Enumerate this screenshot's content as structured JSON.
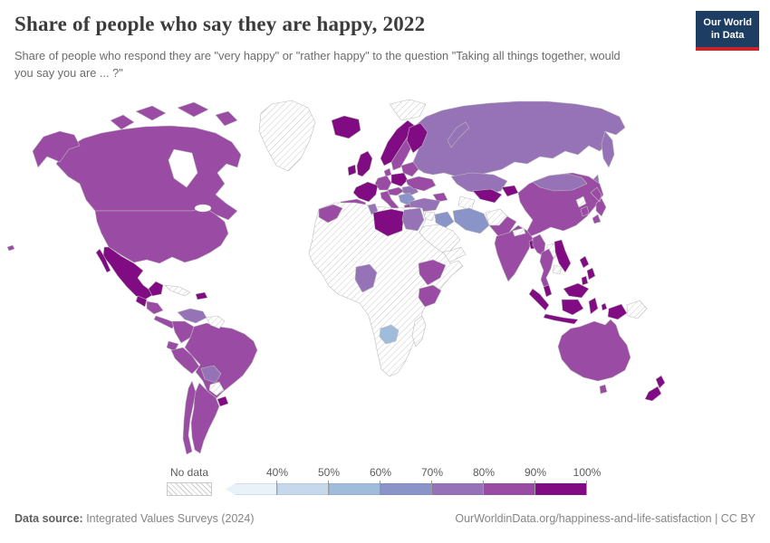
{
  "header": {
    "title": "Share of people who say they are happy, 2022",
    "subtitle": "Share of people who respond they are \"very happy\" or \"rather happy\" to the question \"Taking all things together, would you say you are ... ?\"",
    "logo_line1": "Our World",
    "logo_line2": "in Data",
    "logo_bg": "#1d3d63",
    "logo_accent": "#c5262c"
  },
  "legend": {
    "no_data_label": "No data",
    "ticks": [
      "40%",
      "50%",
      "60%",
      "70%",
      "80%",
      "90%",
      "100%"
    ],
    "bins": [
      {
        "range": "<40%",
        "color": "#e9f2f8"
      },
      {
        "range": "40-50%",
        "color": "#c6d9ec"
      },
      {
        "range": "50-60%",
        "color": "#9fbcdb"
      },
      {
        "range": "60-70%",
        "color": "#8a94c8"
      },
      {
        "range": "70-80%",
        "color": "#9673b7"
      },
      {
        "range": "80-90%",
        "color": "#9a4ba4"
      },
      {
        "range": "90-100%",
        "color": "#800b82"
      }
    ]
  },
  "footer": {
    "source_label": "Data source:",
    "source_value": " Integrated Values Surveys (2024)",
    "credit": "OurWorldinData.org/happiness-and-life-satisfaction | CC BY"
  },
  "chart_data": {
    "type": "choropleth-map",
    "title": "Share of people who say they are happy, 2022",
    "unit": "%",
    "bins": [
      "<40%",
      "40-50%",
      "50-60%",
      "60-70%",
      "70-80%",
      "80-90%",
      "90-100%",
      "no-data"
    ],
    "regions": [
      {
        "id": "greenland",
        "name": "Greenland",
        "bin": "no-data"
      },
      {
        "id": "svalbard",
        "name": "Svalbard",
        "bin": "no-data"
      },
      {
        "id": "canada",
        "name": "Canada",
        "bin": "80-90%"
      },
      {
        "id": "united-states",
        "name": "United States",
        "bin": "80-90%"
      },
      {
        "id": "mexico",
        "name": "Mexico",
        "bin": "90-100%"
      },
      {
        "id": "guatemala",
        "name": "Guatemala",
        "bin": "90-100%"
      },
      {
        "id": "nicaragua",
        "name": "Nicaragua",
        "bin": "80-90%"
      },
      {
        "id": "panama",
        "name": "Panama",
        "bin": "80-90%"
      },
      {
        "id": "cuba",
        "name": "Cuba",
        "bin": "no-data"
      },
      {
        "id": "dominican-republic",
        "name": "Dominican Republic",
        "bin": "90-100%"
      },
      {
        "id": "venezuela",
        "name": "Venezuela",
        "bin": "70-80%"
      },
      {
        "id": "guyana",
        "name": "Guyana/Suriname",
        "bin": "no-data"
      },
      {
        "id": "colombia",
        "name": "Colombia",
        "bin": "80-90%"
      },
      {
        "id": "ecuador",
        "name": "Ecuador",
        "bin": "80-90%"
      },
      {
        "id": "peru",
        "name": "Peru",
        "bin": "80-90%"
      },
      {
        "id": "brazil",
        "name": "Brazil",
        "bin": "80-90%"
      },
      {
        "id": "bolivia",
        "name": "Bolivia",
        "bin": "70-80%"
      },
      {
        "id": "paraguay",
        "name": "Paraguay",
        "bin": "no-data"
      },
      {
        "id": "uruguay",
        "name": "Uruguay",
        "bin": "90-100%"
      },
      {
        "id": "argentina",
        "name": "Argentina",
        "bin": "80-90%"
      },
      {
        "id": "chile",
        "name": "Chile",
        "bin": "80-90%"
      },
      {
        "id": "iceland",
        "name": "Iceland",
        "bin": "90-100%"
      },
      {
        "id": "ireland",
        "name": "Ireland",
        "bin": "90-100%"
      },
      {
        "id": "united-kingdom",
        "name": "United Kingdom",
        "bin": "90-100%"
      },
      {
        "id": "norway",
        "name": "Norway",
        "bin": "90-100%"
      },
      {
        "id": "sweden",
        "name": "Sweden",
        "bin": "80-90%"
      },
      {
        "id": "finland",
        "name": "Finland",
        "bin": "90-100%"
      },
      {
        "id": "denmark",
        "name": "Denmark",
        "bin": "80-90%"
      },
      {
        "id": "germany",
        "name": "Germany",
        "bin": "80-90%"
      },
      {
        "id": "poland",
        "name": "Poland",
        "bin": "90-100%"
      },
      {
        "id": "france",
        "name": "France",
        "bin": "90-100%"
      },
      {
        "id": "spain",
        "name": "Spain",
        "bin": "80-90%"
      },
      {
        "id": "italy",
        "name": "Italy",
        "bin": "80-90%"
      },
      {
        "id": "austria",
        "name": "Austria/Czechia",
        "bin": "80-90%"
      },
      {
        "id": "balkans",
        "name": "Serbia/Bulgaria",
        "bin": "60-70%"
      },
      {
        "id": "greece",
        "name": "Greece",
        "bin": "80-90%"
      },
      {
        "id": "romania",
        "name": "Romania",
        "bin": "70-80%"
      },
      {
        "id": "ukraine",
        "name": "Ukraine",
        "bin": "80-90%"
      },
      {
        "id": "baltics",
        "name": "Baltic states/Belarus",
        "bin": "80-90%"
      },
      {
        "id": "russia",
        "name": "Russia",
        "bin": "70-80%"
      },
      {
        "id": "kazakhstan",
        "name": "Kazakhstan",
        "bin": "70-80%"
      },
      {
        "id": "uzbekistan",
        "name": "Uzbekistan",
        "bin": "90-100%"
      },
      {
        "id": "kyrgyzstan",
        "name": "Kyrgyzstan",
        "bin": "90-100%"
      },
      {
        "id": "turkmenistan",
        "name": "Turkmenistan",
        "bin": "no-data"
      },
      {
        "id": "caucasus",
        "name": "Caucasus",
        "bin": "80-90%"
      },
      {
        "id": "turkey",
        "name": "Turkey",
        "bin": "70-80%"
      },
      {
        "id": "syria",
        "name": "Syria/Levant",
        "bin": "no-data"
      },
      {
        "id": "iraq",
        "name": "Iraq",
        "bin": "60-70%"
      },
      {
        "id": "iran",
        "name": "Iran",
        "bin": "60-70%"
      },
      {
        "id": "saudi-arabia",
        "name": "Saudi Arabia",
        "bin": "no-data"
      },
      {
        "id": "yemen",
        "name": "Yemen/Oman",
        "bin": "no-data"
      },
      {
        "id": "afghanistan",
        "name": "Afghanistan",
        "bin": "no-data"
      },
      {
        "id": "pakistan",
        "name": "Pakistan",
        "bin": "80-90%"
      },
      {
        "id": "india",
        "name": "India",
        "bin": "80-90%"
      },
      {
        "id": "bangladesh",
        "name": "Bangladesh",
        "bin": "90-100%"
      },
      {
        "id": "nepal",
        "name": "Nepal",
        "bin": "no-data"
      },
      {
        "id": "china",
        "name": "China",
        "bin": "80-90%"
      },
      {
        "id": "mongolia",
        "name": "Mongolia",
        "bin": "70-80%"
      },
      {
        "id": "japan",
        "name": "Japan",
        "bin": "80-90%"
      },
      {
        "id": "south-korea",
        "name": "South Korea",
        "bin": "80-90%"
      },
      {
        "id": "north-korea",
        "name": "North Korea",
        "bin": "no-data"
      },
      {
        "id": "myanmar",
        "name": "Myanmar",
        "bin": "80-90%"
      },
      {
        "id": "thailand",
        "name": "Thailand",
        "bin": "80-90%"
      },
      {
        "id": "laos",
        "name": "Laos",
        "bin": "no-data"
      },
      {
        "id": "vietnam",
        "name": "Vietnam",
        "bin": "90-100%"
      },
      {
        "id": "cambodia",
        "name": "Cambodia",
        "bin": "no-data"
      },
      {
        "id": "malaysia",
        "name": "Malaysia",
        "bin": "90-100%"
      },
      {
        "id": "indonesia",
        "name": "Indonesia",
        "bin": "90-100%"
      },
      {
        "id": "philippines",
        "name": "Philippines",
        "bin": "90-100%"
      },
      {
        "id": "papua-new-guinea",
        "name": "Papua New Guinea",
        "bin": "no-data"
      },
      {
        "id": "australia",
        "name": "Australia",
        "bin": "80-90%"
      },
      {
        "id": "new-zealand",
        "name": "New Zealand",
        "bin": "90-100%"
      },
      {
        "id": "africa-interior",
        "name": "Other Africa",
        "bin": "no-data"
      },
      {
        "id": "morocco",
        "name": "Morocco",
        "bin": "80-90%"
      },
      {
        "id": "tunisia",
        "name": "Tunisia",
        "bin": "70-80%"
      },
      {
        "id": "libya",
        "name": "Libya",
        "bin": "90-100%"
      },
      {
        "id": "egypt",
        "name": "Egypt",
        "bin": "70-80%"
      },
      {
        "id": "nigeria",
        "name": "Nigeria",
        "bin": "70-80%"
      },
      {
        "id": "ethiopia",
        "name": "Ethiopia",
        "bin": "80-90%"
      },
      {
        "id": "kenya",
        "name": "Kenya",
        "bin": "80-90%"
      },
      {
        "id": "zimbabwe",
        "name": "Zimbabwe",
        "bin": "50-60%"
      },
      {
        "id": "madagascar",
        "name": "Madagascar",
        "bin": "no-data"
      }
    ]
  }
}
